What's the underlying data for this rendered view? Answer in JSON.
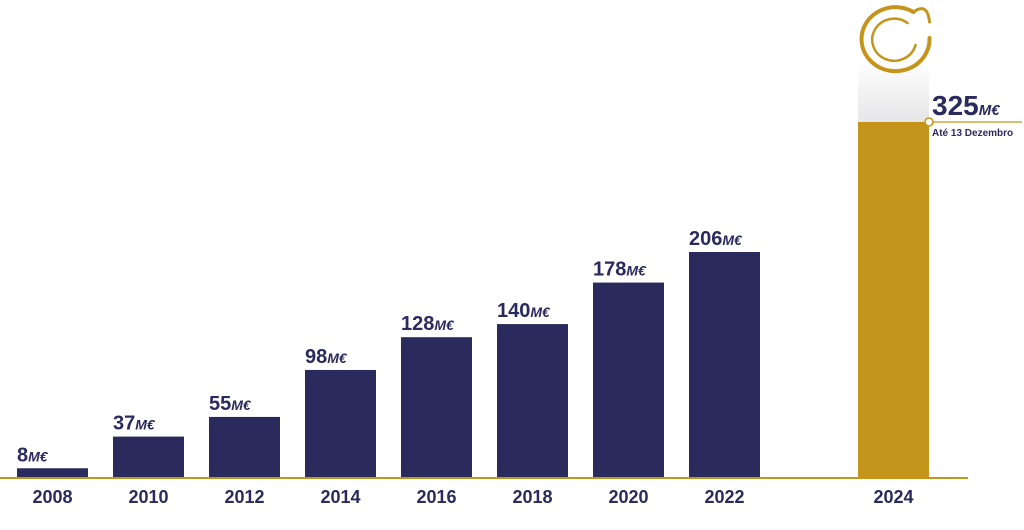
{
  "chart_data": {
    "type": "bar",
    "categories": [
      "2008",
      "2010",
      "2012",
      "2014",
      "2016",
      "2018",
      "2020",
      "2022",
      "2024"
    ],
    "values": [
      8,
      37,
      55,
      98,
      128,
      140,
      178,
      206,
      325
    ],
    "value_labels": [
      "8",
      "37",
      "55",
      "98",
      "128",
      "140",
      "178",
      "206",
      "325"
    ],
    "unit": "M€",
    "ylim": [
      0,
      325
    ],
    "highlight": {
      "category": "2024",
      "note": "Até 13 Dezembro"
    },
    "grid": false,
    "legend": "none",
    "colors": {
      "bar": "#2b2a5c",
      "highlight_bar": "#c5941a",
      "axis": "#c5941a",
      "text": "#2b2a5c"
    }
  }
}
